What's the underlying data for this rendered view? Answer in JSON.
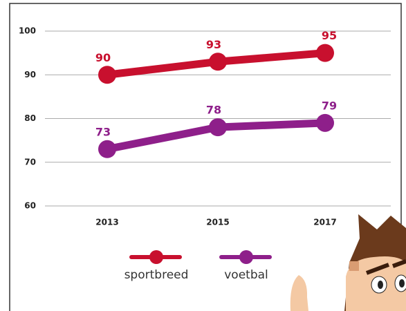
{
  "chart_data": {
    "type": "line",
    "categories": [
      "2013",
      "2015",
      "2017"
    ],
    "series": [
      {
        "name": "sportbreed",
        "color": "#c8102e",
        "values": [
          90,
          93,
          95
        ]
      },
      {
        "name": "voetbal",
        "color": "#8e1f8a",
        "values": [
          73,
          78,
          79
        ]
      }
    ],
    "ylim": [
      60,
      100
    ],
    "yticks": [
      60,
      70,
      80,
      90,
      100
    ],
    "grid": true
  }
}
